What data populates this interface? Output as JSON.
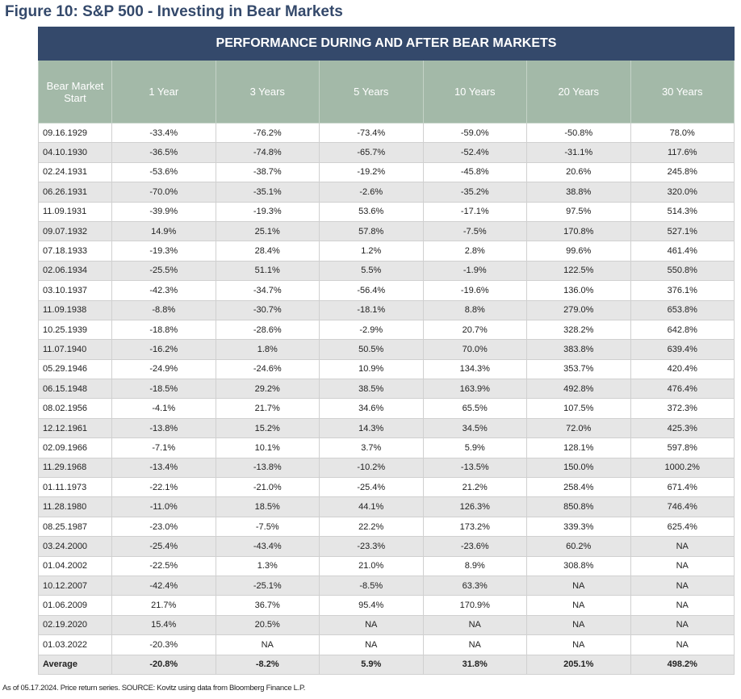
{
  "title": "Figure 10: S&P 500 - Investing in Bear Markets",
  "table": {
    "caption": "PERFORMANCE DURING AND AFTER BEAR MARKETS",
    "columns": [
      "Bear Market Start",
      "1 Year",
      "3 Years",
      "5 Years",
      "10 Years",
      "20 Years",
      "30 Years"
    ],
    "rows": [
      [
        "09.16.1929",
        "-33.4%",
        "-76.2%",
        "-73.4%",
        "-59.0%",
        "-50.8%",
        "78.0%"
      ],
      [
        "04.10.1930",
        "-36.5%",
        "-74.8%",
        "-65.7%",
        "-52.4%",
        "-31.1%",
        "117.6%"
      ],
      [
        "02.24.1931",
        "-53.6%",
        "-38.7%",
        "-19.2%",
        "-45.8%",
        "20.6%",
        "245.8%"
      ],
      [
        "06.26.1931",
        "-70.0%",
        "-35.1%",
        "-2.6%",
        "-35.2%",
        "38.8%",
        "320.0%"
      ],
      [
        "11.09.1931",
        "-39.9%",
        "-19.3%",
        "53.6%",
        "-17.1%",
        "97.5%",
        "514.3%"
      ],
      [
        "09.07.1932",
        "14.9%",
        "25.1%",
        "57.8%",
        "-7.5%",
        "170.8%",
        "527.1%"
      ],
      [
        "07.18.1933",
        "-19.3%",
        "28.4%",
        "1.2%",
        "2.8%",
        "99.6%",
        "461.4%"
      ],
      [
        "02.06.1934",
        "-25.5%",
        "51.1%",
        "5.5%",
        "-1.9%",
        "122.5%",
        "550.8%"
      ],
      [
        "03.10.1937",
        "-42.3%",
        "-34.7%",
        "-56.4%",
        "-19.6%",
        "136.0%",
        "376.1%"
      ],
      [
        "11.09.1938",
        "-8.8%",
        "-30.7%",
        "-18.1%",
        "8.8%",
        "279.0%",
        "653.8%"
      ],
      [
        "10.25.1939",
        "-18.8%",
        "-28.6%",
        "-2.9%",
        "20.7%",
        "328.2%",
        "642.8%"
      ],
      [
        "11.07.1940",
        "-16.2%",
        "1.8%",
        "50.5%",
        "70.0%",
        "383.8%",
        "639.4%"
      ],
      [
        "05.29.1946",
        "-24.9%",
        "-24.6%",
        "10.9%",
        "134.3%",
        "353.7%",
        "420.4%"
      ],
      [
        "06.15.1948",
        "-18.5%",
        "29.2%",
        "38.5%",
        "163.9%",
        "492.8%",
        "476.4%"
      ],
      [
        "08.02.1956",
        "-4.1%",
        "21.7%",
        "34.6%",
        "65.5%",
        "107.5%",
        "372.3%"
      ],
      [
        "12.12.1961",
        "-13.8%",
        "15.2%",
        "14.3%",
        "34.5%",
        "72.0%",
        "425.3%"
      ],
      [
        "02.09.1966",
        "-7.1%",
        "10.1%",
        "3.7%",
        "5.9%",
        "128.1%",
        "597.8%"
      ],
      [
        "11.29.1968",
        "-13.4%",
        "-13.8%",
        "-10.2%",
        "-13.5%",
        "150.0%",
        "1000.2%"
      ],
      [
        "01.11.1973",
        "-22.1%",
        "-21.0%",
        "-25.4%",
        "21.2%",
        "258.4%",
        "671.4%"
      ],
      [
        "11.28.1980",
        "-11.0%",
        "18.5%",
        "44.1%",
        "126.3%",
        "850.8%",
        "746.4%"
      ],
      [
        "08.25.1987",
        "-23.0%",
        "-7.5%",
        "22.2%",
        "173.2%",
        "339.3%",
        "625.4%"
      ],
      [
        "03.24.2000",
        "-25.4%",
        "-43.4%",
        "-23.3%",
        "-23.6%",
        "60.2%",
        "NA"
      ],
      [
        "01.04.2002",
        "-22.5%",
        "1.3%",
        "21.0%",
        "8.9%",
        "308.8%",
        "NA"
      ],
      [
        "10.12.2007",
        "-42.4%",
        "-25.1%",
        "-8.5%",
        "63.3%",
        "NA",
        "NA"
      ],
      [
        "01.06.2009",
        "21.7%",
        "36.7%",
        "95.4%",
        "170.9%",
        "NA",
        "NA"
      ],
      [
        "02.19.2020",
        "15.4%",
        "20.5%",
        "NA",
        "NA",
        "NA",
        "NA"
      ],
      [
        "01.03.2022",
        "-20.3%",
        "NA",
        "NA",
        "NA",
        "NA",
        "NA"
      ]
    ],
    "average": [
      "Average",
      "-20.8%",
      "-8.2%",
      "5.9%",
      "31.8%",
      "205.1%",
      "498.2%"
    ]
  },
  "footnote": "As of 05.17.2024. Price return series. SOURCE: Kovitz using data from Bloomberg Finance L.P."
}
